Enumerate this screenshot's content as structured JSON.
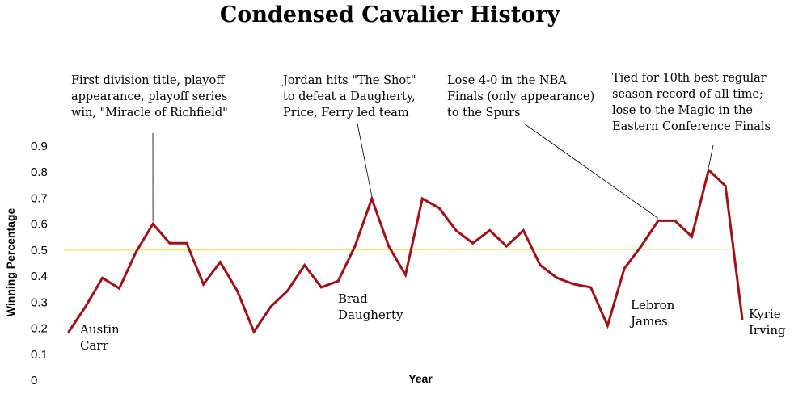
{
  "chart_data": {
    "type": "line",
    "title": "Condensed Cavalier History",
    "xlabel": "Year",
    "ylabel": "Winning Percentage",
    "ylim": [
      0,
      0.9
    ],
    "yticks": [
      "0",
      "0.1",
      "0.2",
      "0.3",
      "0.4",
      "0.5",
      "0.6",
      "0.7",
      "0.8",
      "0.9"
    ],
    "grid": false,
    "reference_line": {
      "y": 0.5,
      "color": "#f2e46a"
    },
    "series": [
      {
        "color": "#a50f14",
        "values": [
          0.183,
          0.28,
          0.39,
          0.35,
          0.49,
          0.598,
          0.524,
          0.524,
          0.366,
          0.451,
          0.341,
          0.183,
          0.28,
          0.341,
          0.439,
          0.354,
          0.378,
          0.512,
          0.695,
          0.512,
          0.402,
          0.695,
          0.659,
          0.573,
          0.524,
          0.573,
          0.512,
          0.573,
          0.439,
          0.39,
          0.366,
          0.354,
          0.207,
          0.427,
          0.512,
          0.61,
          0.61,
          0.549,
          0.805,
          0.744,
          0.232
        ]
      }
    ],
    "player_labels": [
      {
        "line1": "Austin",
        "line2": "Carr"
      },
      {
        "line1": "Brad",
        "line2": "Daugherty"
      },
      {
        "line1": "Lebron",
        "line2": "James"
      },
      {
        "line1": "Kyrie",
        "line2": "Irving"
      }
    ],
    "annotations": [
      {
        "lines": [
          "First division title, playoff",
          "appearance,  playoff series",
          "win, \"Miracle of Richfield\""
        ]
      },
      {
        "lines": [
          "Jordan hits \"The Shot\"",
          "to defeat a Daugherty,",
          "Price, Ferry led team"
        ]
      },
      {
        "lines": [
          "Lose 4-0 in the NBA",
          "Finals (only appearance)",
          "to the Spurs"
        ]
      },
      {
        "lines": [
          "Tied for 10th best regular",
          "season record of all time;",
          "lose to the Magic in the",
          "Eastern Conference Finals"
        ]
      }
    ]
  }
}
